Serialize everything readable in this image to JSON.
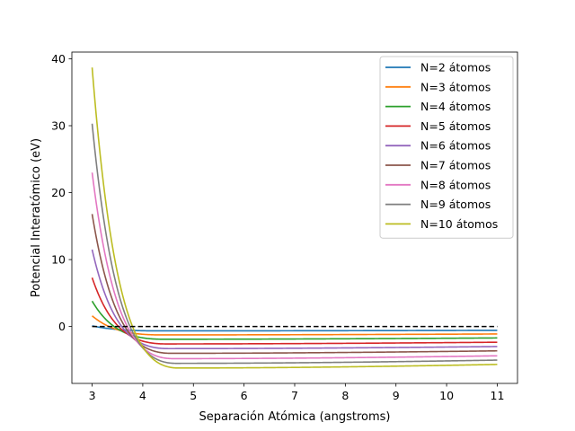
{
  "chart_data": {
    "type": "line",
    "xlabel": "Separación Atómica (angstroms)",
    "ylabel": "Potencial Interatómico (eV)",
    "xlim": [
      2.6,
      11.4
    ],
    "ylim": [
      -8.5,
      41.0
    ],
    "xticks": [
      3,
      4,
      5,
      6,
      7,
      8,
      9,
      10,
      11
    ],
    "yticks": [
      0,
      10,
      20,
      30,
      40
    ],
    "x_range": [
      3.0,
      11.0
    ],
    "reference_line": {
      "y": 0,
      "style": "dashed",
      "color": "#000000"
    },
    "legend_position": "top-right",
    "series": [
      {
        "name": "N=2 átomos",
        "color": "#1f77b4",
        "y_at_x3": 0.1,
        "min_x": 4.3,
        "min_y": -0.65,
        "y_at_x11": -0.18
      },
      {
        "name": "N=3 átomos",
        "color": "#ff7f0e",
        "y_at_x3": 1.6,
        "min_x": 4.35,
        "min_y": -1.25,
        "y_at_x11": -0.3
      },
      {
        "name": "N=4 átomos",
        "color": "#2ca02c",
        "y_at_x3": 3.8,
        "min_x": 4.4,
        "min_y": -1.9,
        "y_at_x11": -0.42
      },
      {
        "name": "N=5 átomos",
        "color": "#d62728",
        "y_at_x3": 7.3,
        "min_x": 4.45,
        "min_y": -2.6,
        "y_at_x11": -0.53
      },
      {
        "name": "N=6 átomos",
        "color": "#9467bd",
        "y_at_x3": 11.5,
        "min_x": 4.5,
        "min_y": -3.3,
        "y_at_x11": -0.64
      },
      {
        "name": "N=7 átomos",
        "color": "#8c564b",
        "y_at_x3": 16.8,
        "min_x": 4.55,
        "min_y": -4.0,
        "y_at_x11": -0.75
      },
      {
        "name": "N=8 átomos",
        "color": "#e377c2",
        "y_at_x3": 23.0,
        "min_x": 4.6,
        "min_y": -4.8,
        "y_at_x11": -0.86
      },
      {
        "name": "N=9 átomos",
        "color": "#7f7f7f",
        "y_at_x3": 30.3,
        "min_x": 4.65,
        "min_y": -5.5,
        "y_at_x11": -0.97
      },
      {
        "name": "N=10 átomos",
        "color": "#bcbd22",
        "y_at_x3": 38.7,
        "min_x": 4.7,
        "min_y": -6.2,
        "y_at_x11": -1.08
      }
    ]
  }
}
